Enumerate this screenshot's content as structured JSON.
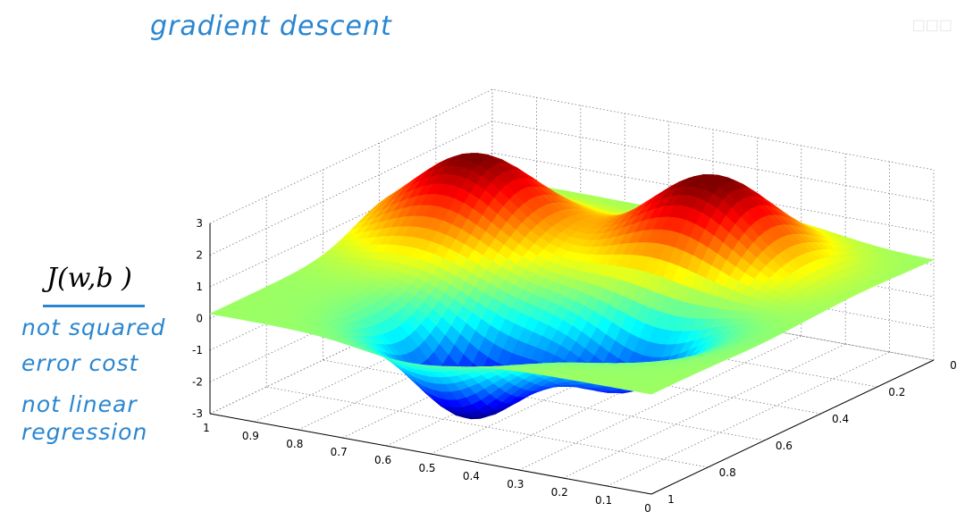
{
  "annotations": {
    "title": "gradient descent",
    "cost_label": "J(w,b )",
    "notes": [
      "not squared",
      "error cost",
      "not linear",
      "regression"
    ]
  },
  "chart_data": {
    "type": "surface3d",
    "title": "",
    "xlabel": "",
    "ylabel": "",
    "zlabel": "J(w,b )",
    "x_ticks": [
      "1",
      "0.9",
      "0.8",
      "0.7",
      "0.6",
      "0.5",
      "0.4",
      "0.3",
      "0.2",
      "0.1",
      "0"
    ],
    "y_ticks": [
      "0",
      "0.2",
      "0.4",
      "0.6",
      "0.8",
      "1"
    ],
    "z_ticks": [
      "3",
      "2",
      "1",
      "0",
      "-1",
      "-2",
      "-3"
    ],
    "xlim": [
      0,
      1
    ],
    "ylim": [
      0,
      1
    ],
    "zlim": [
      -3,
      3
    ],
    "grid": true,
    "colormap": "jet",
    "features": [
      {
        "kind": "peak",
        "x": 0.82,
        "y": 0.35,
        "z": 2.7
      },
      {
        "kind": "peak",
        "x": 0.35,
        "y": 0.25,
        "z": 2.8
      },
      {
        "kind": "valley",
        "x": 0.55,
        "y": 0.78,
        "z": -3.0
      },
      {
        "kind": "valley",
        "x": 0.3,
        "y": 0.62,
        "z": -2.2
      }
    ]
  }
}
